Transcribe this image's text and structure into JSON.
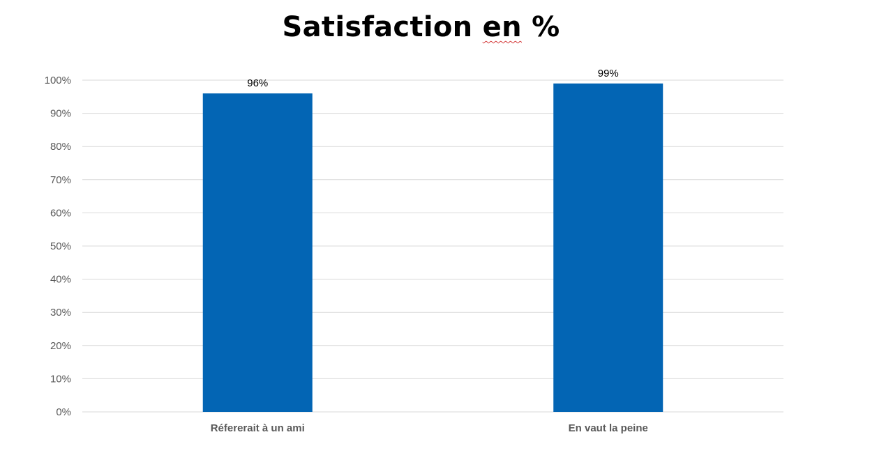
{
  "chart_data": {
    "type": "bar",
    "title": "Satisfaction en %",
    "title_parts": {
      "lead": "Satisfaction ",
      "flagged": "en",
      "tail": " %"
    },
    "categories": [
      "Réfererait à un ami",
      "En vaut la peine"
    ],
    "series": [
      {
        "values": [
          96,
          99
        ],
        "data_labels": [
          "96%",
          "99%"
        ]
      }
    ],
    "ylim": [
      0,
      100
    ],
    "yticks": [
      0,
      10,
      20,
      30,
      40,
      50,
      60,
      70,
      80,
      90,
      100
    ],
    "ytick_labels": [
      "0%",
      "10%",
      "20%",
      "30%",
      "40%",
      "50%",
      "60%",
      "70%",
      "80%",
      "90%",
      "100%"
    ],
    "xlabel": "",
    "ylabel": "",
    "grid": true,
    "legend": "none",
    "colors": {
      "bar": "#0365b4",
      "grid": "#d9d9d9",
      "tick_text": "#595959",
      "data_label": "#000000",
      "category_text": "#595959"
    }
  }
}
